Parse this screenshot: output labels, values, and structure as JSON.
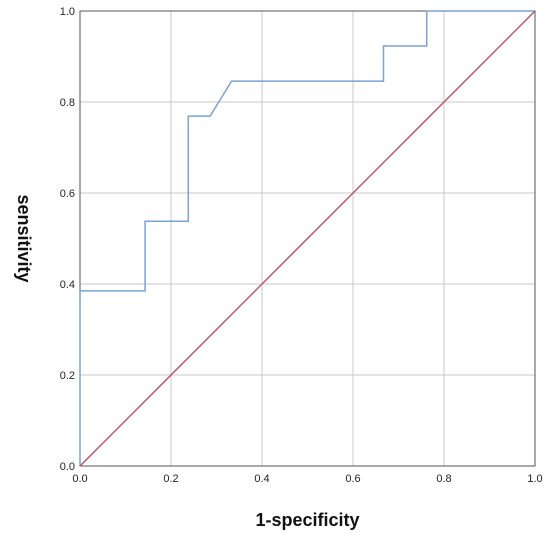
{
  "chart_data": {
    "type": "line",
    "title": "",
    "xlabel": "1-specificity",
    "ylabel": "sensitivity",
    "xlim": [
      0,
      1
    ],
    "ylim": [
      0,
      1
    ],
    "xticks": [
      0.0,
      0.2,
      0.4,
      0.6,
      0.8,
      1.0
    ],
    "yticks": [
      0.0,
      0.2,
      0.4,
      0.6,
      0.8,
      1.0
    ],
    "xtick_labels": [
      "0.0",
      "0.2",
      "0.4",
      "0.6",
      "0.8",
      "1.0"
    ],
    "ytick_labels": [
      "0.0",
      "0.2",
      "0.4",
      "0.6",
      "0.8",
      "1.0"
    ],
    "grid": true,
    "series": [
      {
        "color": "#7aa3d4",
        "x": [
          0,
          0,
          0.143,
          0.143,
          0.238,
          0.238,
          0.286,
          0.333,
          0.667,
          0.667,
          0.762,
          0.762,
          1.0
        ],
        "y": [
          0,
          0.385,
          0.385,
          0.538,
          0.538,
          0.769,
          0.769,
          0.846,
          0.846,
          0.923,
          0.923,
          1.0,
          1.0
        ]
      },
      {
        "color": "#b85a6a",
        "x": [
          0,
          1
        ],
        "y": [
          0,
          1
        ]
      }
    ]
  }
}
